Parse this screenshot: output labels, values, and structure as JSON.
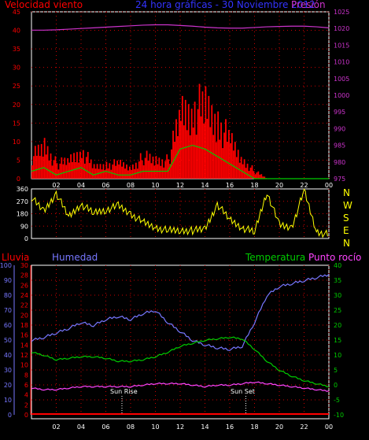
{
  "header": {
    "wind_label": "Velocidad viento",
    "title": "24 hora gráficas - 30 Noviembre 2012",
    "pressure_label": "Presión"
  },
  "mid": {
    "compass": [
      "N",
      "W",
      "S",
      "E",
      "N"
    ]
  },
  "bottom": {
    "rain_label": "Lluvia",
    "humidity_label": "Humedad",
    "temp_label": "Temperatura",
    "dew_label": "Punto rocío",
    "sunrise_label": "Sun Rise",
    "sunset_label": "Sun Set"
  },
  "colors": {
    "wind": "#ff0000",
    "gust": "#ff0000",
    "avg_wind": "#00cc00",
    "pressure": "#cc33cc",
    "direction": "#ffff00",
    "humidity": "#7777ff",
    "temperature": "#00cc00",
    "dew_point": "#ff44ff",
    "rain": "#ff0000",
    "grid": "#cc0000"
  },
  "chart_data": [
    {
      "type": "area",
      "hours_ticks": [
        "02",
        "04",
        "06",
        "08",
        "10",
        "12",
        "14",
        "16",
        "18",
        "20",
        "22",
        "00"
      ],
      "y_left_ticks": [
        "0",
        "5",
        "10",
        "15",
        "20",
        "25",
        "30",
        "35",
        "40",
        "45"
      ],
      "y_right_ticks": [
        "975",
        "980",
        "985",
        "990",
        "995",
        "1000",
        "1005",
        "1010",
        "1015",
        "1020",
        "1025"
      ],
      "ylim_wind": [
        0,
        45
      ],
      "ylim_pressure": [
        975,
        1025
      ],
      "x_hours": [
        0,
        1,
        2,
        3,
        4,
        5,
        6,
        7,
        8,
        9,
        10,
        11,
        12,
        13,
        14,
        15,
        16,
        17,
        18,
        19,
        20,
        21,
        22,
        23,
        24
      ],
      "series": [
        {
          "name": "Velocidad viento",
          "values": [
            6,
            9,
            4,
            5,
            8,
            3,
            4,
            4,
            3,
            6,
            5,
            5,
            18,
            20,
            19,
            16,
            10,
            5,
            2,
            0,
            0,
            0,
            0,
            0,
            0
          ]
        },
        {
          "name": "avg",
          "values": [
            2,
            3,
            1,
            2,
            3,
            1,
            2,
            1,
            1,
            2,
            2,
            2,
            8,
            9,
            8,
            6,
            4,
            2,
            0,
            0,
            0,
            0,
            0,
            0,
            0
          ]
        },
        {
          "name": "Presión",
          "values": [
            1019.5,
            1019.5,
            1019.6,
            1019.8,
            1020,
            1020.2,
            1020.4,
            1020.6,
            1020.8,
            1021,
            1021.1,
            1021.1,
            1020.9,
            1020.7,
            1020.4,
            1020.2,
            1020.1,
            1020.1,
            1020.3,
            1020.5,
            1020.6,
            1020.7,
            1020.7,
            1020.5,
            1020.2
          ]
        }
      ]
    },
    {
      "type": "line",
      "ylabel_ticks": [
        "0",
        "90",
        "180",
        "270",
        "360"
      ],
      "ylim": [
        0,
        360
      ],
      "x_hours": [
        0,
        1,
        2,
        3,
        4,
        5,
        6,
        7,
        8,
        9,
        10,
        11,
        12,
        13,
        14,
        15,
        16,
        17,
        18,
        19,
        20,
        21,
        22,
        23,
        24
      ],
      "series": [
        {
          "name": "direction",
          "values": [
            300,
            200,
            330,
            160,
            250,
            190,
            210,
            240,
            180,
            120,
            80,
            60,
            60,
            60,
            70,
            250,
            140,
            80,
            50,
            340,
            100,
            80,
            350,
            50,
            30
          ]
        }
      ]
    },
    {
      "type": "line",
      "humidity_ticks": [
        "0",
        "10",
        "20",
        "30",
        "40",
        "50",
        "60",
        "70",
        "80",
        "90",
        "100"
      ],
      "rain_ticks": [
        "0",
        "2",
        "4",
        "6",
        "8",
        "10",
        "12",
        "14",
        "16",
        "18",
        "20",
        "22",
        "24",
        "26",
        "28",
        "30"
      ],
      "temp_ticks": [
        "-10",
        "-5",
        "0",
        "5",
        "10",
        "15",
        "20",
        "25",
        "30",
        "35",
        "40"
      ],
      "x_hours": [
        0,
        1,
        2,
        3,
        4,
        5,
        6,
        7,
        8,
        9,
        10,
        11,
        12,
        13,
        14,
        15,
        16,
        17,
        18,
        19,
        20,
        21,
        22,
        23,
        24
      ],
      "series": [
        {
          "name": "Humedad",
          "values": [
            50,
            52,
            55,
            58,
            62,
            60,
            64,
            66,
            64,
            68,
            70,
            62,
            56,
            50,
            47,
            45,
            44,
            46,
            62,
            80,
            86,
            88,
            90,
            92,
            94
          ]
        },
        {
          "name": "Temperatura",
          "values": [
            11,
            10,
            8.5,
            9,
            9.5,
            9.5,
            9,
            8,
            8,
            8.5,
            9.5,
            11,
            13,
            14,
            15,
            15.5,
            16,
            15.5,
            12,
            8,
            5,
            3,
            1.5,
            0.5,
            -0.5
          ]
        },
        {
          "name": "Punto rocío",
          "values": [
            -1,
            -1.5,
            -1.5,
            -1,
            -0.5,
            -0.5,
            -0.5,
            -0.5,
            -0.5,
            0,
            0.5,
            0.5,
            0.5,
            0,
            -0.5,
            0,
            0,
            0.5,
            1,
            0.5,
            0,
            -0.5,
            -1,
            -1.5,
            -2
          ]
        },
        {
          "name": "Lluvia",
          "values": [
            0,
            0,
            0,
            0,
            0,
            0,
            0,
            0,
            0,
            0,
            0,
            0,
            0,
            0,
            0,
            0,
            0,
            0,
            0,
            0,
            0,
            0,
            0,
            0,
            0
          ]
        }
      ],
      "ylim_humidity": [
        0,
        100
      ],
      "ylim_rain": [
        0,
        30
      ],
      "ylim_temp": [
        -10,
        40
      ],
      "sunrise_hour": 7.3,
      "sunset_hour": 17.3
    }
  ]
}
